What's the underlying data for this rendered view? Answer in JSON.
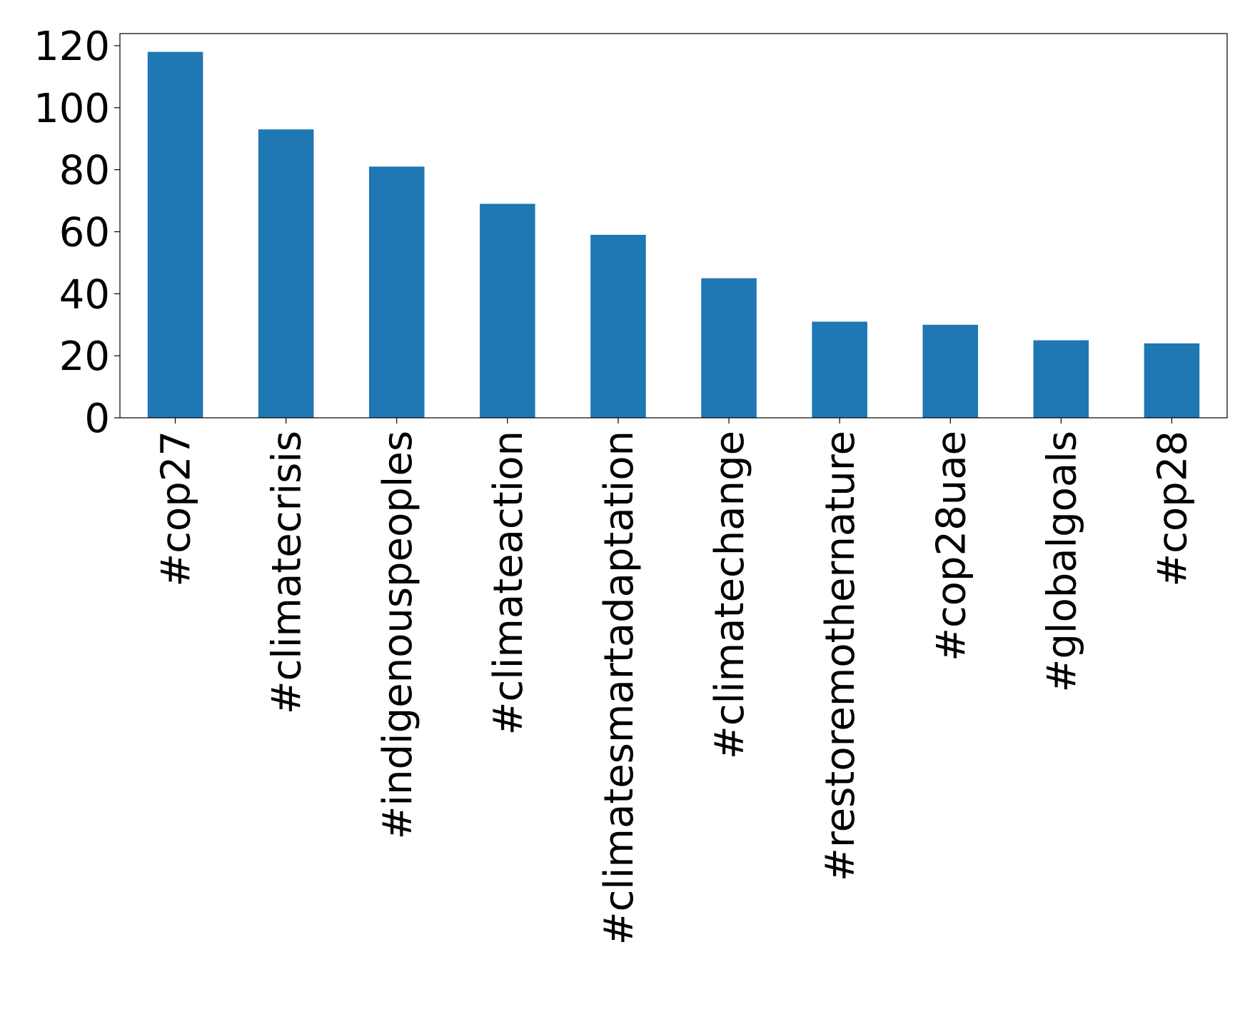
{
  "chart_data": {
    "type": "bar",
    "categories": [
      "#cop27",
      "#climatecrisis",
      "#indigenouspeoples",
      "#climateaction",
      "#climatesmartadaptation",
      "#climatechange",
      "#restoremothernature",
      "#cop28uae",
      "#globalgoals",
      "#cop28"
    ],
    "values": [
      118,
      93,
      81,
      69,
      59,
      45,
      31,
      30,
      25,
      24
    ],
    "color": "#1f77b4",
    "ylim": [
      0,
      123.9
    ],
    "yticks": [
      0,
      20,
      40,
      60,
      80,
      100,
      120
    ],
    "grid": false
  }
}
